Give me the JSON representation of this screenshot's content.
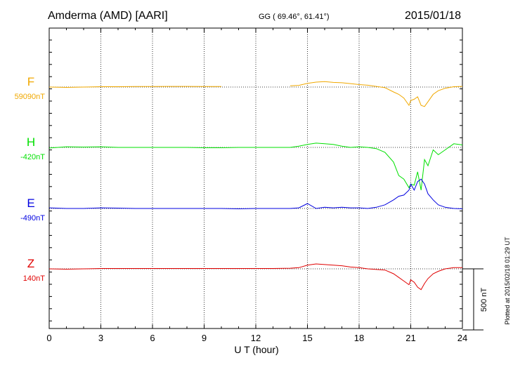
{
  "header": {
    "station": "Amderma (AMD)  [AARI]",
    "coords": "GG ( 69.46°,  61.41°)",
    "date": "2015/01/18"
  },
  "side_note": "Plotted at 2015/02/18 01:29 UT",
  "chart_data": {
    "type": "line",
    "title": "Amderma (AMD)  [AARI]",
    "xlabel": "U T (hour)",
    "xlim": [
      0,
      24
    ],
    "xticks": [
      "0",
      "3",
      "6",
      "9",
      "12",
      "15",
      "18",
      "21",
      "24"
    ],
    "grid": true,
    "scale_bar": "500 nT",
    "scale_bar_value": 500,
    "series": [
      {
        "name": "F",
        "baseline_label": "59090nT",
        "baseline_nT": 59090,
        "color": "#f0a800",
        "x": [
          0,
          1,
          2,
          3,
          4,
          5,
          6,
          7,
          8,
          9,
          10,
          null,
          14,
          14.5,
          15,
          15.5,
          16,
          16.5,
          17,
          17.5,
          18,
          18.5,
          19,
          19.5,
          20,
          20.3,
          20.6,
          20.9,
          21,
          21.2,
          21.4,
          21.6,
          21.8,
          22,
          22.3,
          22.6,
          23,
          23.5,
          24
        ],
        "y": [
          0,
          -3,
          0,
          3,
          3,
          4,
          4,
          5,
          5,
          4,
          4,
          null,
          10,
          14,
          30,
          40,
          45,
          38,
          35,
          28,
          20,
          15,
          5,
          -5,
          -40,
          -60,
          -90,
          -150,
          -110,
          -100,
          -80,
          -150,
          -160,
          -120,
          -60,
          -30,
          -10,
          3,
          5
        ]
      },
      {
        "name": "H",
        "baseline_label": "-420nT",
        "baseline_nT": -420,
        "color": "#00e000",
        "x": [
          0,
          1,
          2,
          3,
          4,
          5,
          6,
          7,
          8,
          9,
          10,
          11,
          12,
          13,
          14,
          14.5,
          15,
          15.5,
          16,
          16.5,
          17,
          17.5,
          18,
          18.5,
          19,
          19.5,
          20,
          20.3,
          20.6,
          20.9,
          21,
          21.2,
          21.4,
          21.6,
          21.8,
          22,
          22.3,
          22.6,
          23,
          23.5,
          24
        ],
        "y": [
          -5,
          5,
          3,
          5,
          0,
          0,
          0,
          0,
          0,
          -3,
          -3,
          0,
          0,
          0,
          0,
          10,
          25,
          35,
          30,
          25,
          10,
          0,
          5,
          0,
          -10,
          -40,
          -120,
          -230,
          -260,
          -330,
          -300,
          -310,
          -200,
          -350,
          -100,
          -150,
          -20,
          -60,
          -20,
          30,
          20
        ]
      },
      {
        "name": "E",
        "baseline_label": "-490nT",
        "baseline_nT": -490,
        "color": "#0000e0",
        "x": [
          0,
          1,
          2,
          3,
          4,
          5,
          6,
          7,
          8,
          9,
          10,
          11,
          12,
          13,
          14,
          14.5,
          15,
          15.5,
          16,
          16.5,
          17,
          17.5,
          18,
          18.5,
          19,
          19.5,
          20,
          20.3,
          20.6,
          20.9,
          21,
          21.2,
          21.4,
          21.6,
          21.8,
          22,
          22.3,
          22.6,
          23,
          23.5,
          24
        ],
        "y": [
          5,
          0,
          0,
          5,
          3,
          0,
          0,
          0,
          0,
          0,
          0,
          -3,
          0,
          0,
          0,
          5,
          40,
          0,
          10,
          5,
          10,
          5,
          5,
          0,
          10,
          30,
          70,
          100,
          110,
          150,
          200,
          150,
          220,
          240,
          200,
          120,
          70,
          30,
          10,
          0,
          -3
        ]
      },
      {
        "name": "Z",
        "baseline_label": "140nT",
        "baseline_nT": 140,
        "color": "#e00000",
        "x": [
          0,
          1,
          2,
          3,
          4,
          5,
          6,
          7,
          8,
          9,
          10,
          11,
          12,
          13,
          14,
          14.5,
          15,
          15.5,
          16,
          16.5,
          17,
          17.5,
          18,
          18.5,
          19,
          19.5,
          20,
          20.3,
          20.6,
          20.9,
          21,
          21.2,
          21.4,
          21.6,
          21.8,
          22,
          22.3,
          22.6,
          23,
          23.5,
          24
        ],
        "y": [
          0,
          -3,
          0,
          3,
          3,
          3,
          3,
          3,
          3,
          3,
          3,
          3,
          3,
          3,
          5,
          10,
          30,
          40,
          35,
          30,
          25,
          15,
          10,
          0,
          -5,
          -10,
          -40,
          -70,
          -100,
          -130,
          -90,
          -110,
          -150,
          -170,
          -120,
          -80,
          -40,
          -20,
          0,
          10,
          10
        ]
      }
    ]
  }
}
